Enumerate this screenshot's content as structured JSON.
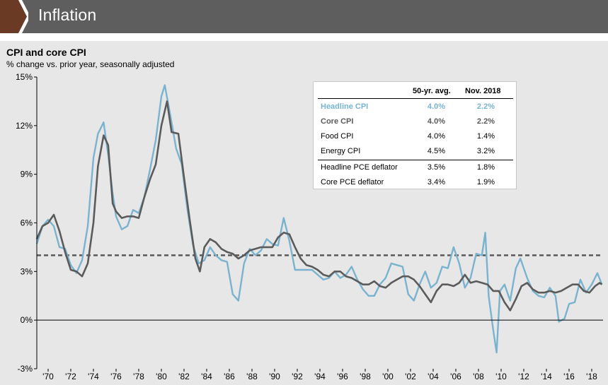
{
  "header": {
    "title": "Inflation",
    "tab_color": "#6b3a24",
    "bar_color": "#5e5e5e"
  },
  "chart_data": {
    "type": "line",
    "title": "CPI and core CPI",
    "subtitle": "% change vs. prior year, seasonally adjusted",
    "y_ticks": [
      "15%",
      "12%",
      "9%",
      "6%",
      "3%",
      "0%",
      "-3%"
    ],
    "ylim": [
      -3,
      15
    ],
    "x_ticks": [
      "'70",
      "'72",
      "'74",
      "'76",
      "'78",
      "'80",
      "'82",
      "'84",
      "'86",
      "'88",
      "'90",
      "'92",
      "'94",
      "'96",
      "'98",
      "'00",
      "'02",
      "'04",
      "'06",
      "'08",
      "'10",
      "'12",
      "'14",
      "'16",
      "'18"
    ],
    "xlim": [
      1969.0,
      2019.0
    ],
    "reference_line": {
      "value": 4.0,
      "style": "dashed",
      "color": "#5a5a5a"
    },
    "series": [
      {
        "name": "Headline CPI",
        "color": "#7ab3cf",
        "points": [
          [
            1969.0,
            4.7
          ],
          [
            1969.5,
            5.8
          ],
          [
            1970.0,
            6.2
          ],
          [
            1970.5,
            5.8
          ],
          [
            1971.0,
            4.5
          ],
          [
            1971.5,
            4.4
          ],
          [
            1972.0,
            3.4
          ],
          [
            1972.5,
            2.9
          ],
          [
            1973.0,
            3.7
          ],
          [
            1973.5,
            5.8
          ],
          [
            1974.0,
            10.0
          ],
          [
            1974.4,
            11.5
          ],
          [
            1974.9,
            12.2
          ],
          [
            1975.3,
            10.2
          ],
          [
            1975.7,
            7.8
          ],
          [
            1976.0,
            6.4
          ],
          [
            1976.5,
            5.6
          ],
          [
            1977.0,
            5.8
          ],
          [
            1977.5,
            6.8
          ],
          [
            1978.0,
            6.6
          ],
          [
            1978.5,
            7.6
          ],
          [
            1979.0,
            9.3
          ],
          [
            1979.5,
            11.1
          ],
          [
            1980.0,
            13.8
          ],
          [
            1980.3,
            14.5
          ],
          [
            1980.8,
            12.6
          ],
          [
            1981.3,
            10.6
          ],
          [
            1981.8,
            9.6
          ],
          [
            1982.3,
            6.8
          ],
          [
            1982.8,
            4.6
          ],
          [
            1983.3,
            3.5
          ],
          [
            1983.8,
            3.7
          ],
          [
            1984.3,
            4.5
          ],
          [
            1984.8,
            4.0
          ],
          [
            1985.3,
            3.7
          ],
          [
            1985.8,
            3.6
          ],
          [
            1986.3,
            1.6
          ],
          [
            1986.8,
            1.2
          ],
          [
            1987.3,
            3.5
          ],
          [
            1987.8,
            4.4
          ],
          [
            1988.3,
            4.0
          ],
          [
            1988.8,
            4.3
          ],
          [
            1989.3,
            5.0
          ],
          [
            1989.8,
            4.7
          ],
          [
            1990.3,
            4.6
          ],
          [
            1990.8,
            6.3
          ],
          [
            1991.3,
            4.9
          ],
          [
            1991.8,
            3.1
          ],
          [
            1992.3,
            3.1
          ],
          [
            1992.8,
            3.1
          ],
          [
            1993.3,
            3.1
          ],
          [
            1993.8,
            2.8
          ],
          [
            1994.3,
            2.5
          ],
          [
            1994.8,
            2.6
          ],
          [
            1995.3,
            3.0
          ],
          [
            1995.8,
            2.6
          ],
          [
            1996.3,
            2.8
          ],
          [
            1996.8,
            3.3
          ],
          [
            1997.3,
            2.5
          ],
          [
            1997.8,
            1.9
          ],
          [
            1998.3,
            1.5
          ],
          [
            1998.8,
            1.5
          ],
          [
            1999.3,
            2.2
          ],
          [
            1999.8,
            2.6
          ],
          [
            2000.3,
            3.5
          ],
          [
            2000.8,
            3.4
          ],
          [
            2001.3,
            3.3
          ],
          [
            2001.8,
            1.6
          ],
          [
            2002.3,
            1.2
          ],
          [
            2002.8,
            2.2
          ],
          [
            2003.3,
            3.0
          ],
          [
            2003.8,
            2.0
          ],
          [
            2004.3,
            2.3
          ],
          [
            2004.8,
            3.3
          ],
          [
            2005.3,
            3.2
          ],
          [
            2005.8,
            4.5
          ],
          [
            2006.3,
            3.5
          ],
          [
            2006.8,
            2.0
          ],
          [
            2007.3,
            2.6
          ],
          [
            2007.8,
            4.1
          ],
          [
            2008.3,
            4.0
          ],
          [
            2008.6,
            5.4
          ],
          [
            2008.9,
            1.5
          ],
          [
            2009.3,
            -0.6
          ],
          [
            2009.6,
            -2.0
          ],
          [
            2009.9,
            1.8
          ],
          [
            2010.3,
            2.2
          ],
          [
            2010.8,
            1.2
          ],
          [
            2011.3,
            3.2
          ],
          [
            2011.7,
            3.8
          ],
          [
            2012.3,
            2.6
          ],
          [
            2012.8,
            1.8
          ],
          [
            2013.3,
            1.5
          ],
          [
            2013.8,
            1.4
          ],
          [
            2014.3,
            2.0
          ],
          [
            2014.8,
            1.5
          ],
          [
            2015.1,
            -0.1
          ],
          [
            2015.6,
            0.1
          ],
          [
            2016.0,
            1.0
          ],
          [
            2016.5,
            1.1
          ],
          [
            2017.0,
            2.5
          ],
          [
            2017.5,
            1.7
          ],
          [
            2018.0,
            2.2
          ],
          [
            2018.5,
            2.9
          ],
          [
            2018.9,
            2.2
          ]
        ]
      },
      {
        "name": "Core CPI",
        "color": "#5b5b5b",
        "points": [
          [
            1969.0,
            5.0
          ],
          [
            1969.5,
            5.8
          ],
          [
            1970.0,
            6.0
          ],
          [
            1970.5,
            6.5
          ],
          [
            1971.0,
            5.5
          ],
          [
            1971.5,
            4.2
          ],
          [
            1972.0,
            3.1
          ],
          [
            1972.5,
            3.0
          ],
          [
            1973.0,
            2.7
          ],
          [
            1973.5,
            3.5
          ],
          [
            1974.0,
            6.0
          ],
          [
            1974.4,
            9.5
          ],
          [
            1974.9,
            11.4
          ],
          [
            1975.3,
            10.8
          ],
          [
            1975.7,
            7.2
          ],
          [
            1976.0,
            6.7
          ],
          [
            1976.5,
            6.3
          ],
          [
            1977.0,
            6.4
          ],
          [
            1977.5,
            6.4
          ],
          [
            1978.0,
            6.3
          ],
          [
            1978.5,
            7.6
          ],
          [
            1979.0,
            8.7
          ],
          [
            1979.5,
            9.6
          ],
          [
            1980.0,
            12.0
          ],
          [
            1980.5,
            13.5
          ],
          [
            1980.9,
            11.6
          ],
          [
            1981.5,
            11.5
          ],
          [
            1982.0,
            8.8
          ],
          [
            1982.5,
            6.2
          ],
          [
            1983.0,
            3.8
          ],
          [
            1983.4,
            3.0
          ],
          [
            1983.8,
            4.5
          ],
          [
            1984.3,
            5.0
          ],
          [
            1984.8,
            4.8
          ],
          [
            1985.3,
            4.4
          ],
          [
            1985.8,
            4.2
          ],
          [
            1986.3,
            4.1
          ],
          [
            1986.8,
            3.8
          ],
          [
            1987.3,
            4.0
          ],
          [
            1987.8,
            4.3
          ],
          [
            1988.3,
            4.4
          ],
          [
            1988.8,
            4.5
          ],
          [
            1989.3,
            4.5
          ],
          [
            1989.8,
            4.5
          ],
          [
            1990.3,
            5.1
          ],
          [
            1990.8,
            5.4
          ],
          [
            1991.3,
            5.3
          ],
          [
            1991.8,
            4.5
          ],
          [
            1992.3,
            3.8
          ],
          [
            1992.8,
            3.4
          ],
          [
            1993.3,
            3.3
          ],
          [
            1993.8,
            3.1
          ],
          [
            1994.3,
            2.8
          ],
          [
            1994.8,
            2.7
          ],
          [
            1995.3,
            3.0
          ],
          [
            1995.8,
            3.0
          ],
          [
            1996.3,
            2.7
          ],
          [
            1996.8,
            2.6
          ],
          [
            1997.3,
            2.4
          ],
          [
            1997.8,
            2.2
          ],
          [
            1998.3,
            2.2
          ],
          [
            1998.8,
            2.4
          ],
          [
            1999.3,
            2.1
          ],
          [
            1999.8,
            2.0
          ],
          [
            2000.3,
            2.3
          ],
          [
            2000.8,
            2.5
          ],
          [
            2001.3,
            2.7
          ],
          [
            2001.8,
            2.7
          ],
          [
            2002.3,
            2.5
          ],
          [
            2002.8,
            2.1
          ],
          [
            2003.3,
            1.6
          ],
          [
            2003.8,
            1.1
          ],
          [
            2004.3,
            1.8
          ],
          [
            2004.8,
            2.2
          ],
          [
            2005.3,
            2.2
          ],
          [
            2005.8,
            2.1
          ],
          [
            2006.3,
            2.3
          ],
          [
            2006.8,
            2.8
          ],
          [
            2007.3,
            2.3
          ],
          [
            2007.8,
            2.4
          ],
          [
            2008.3,
            2.3
          ],
          [
            2008.8,
            2.2
          ],
          [
            2009.3,
            1.8
          ],
          [
            2009.8,
            1.8
          ],
          [
            2010.3,
            1.1
          ],
          [
            2010.8,
            0.6
          ],
          [
            2011.3,
            1.3
          ],
          [
            2011.8,
            2.1
          ],
          [
            2012.3,
            2.3
          ],
          [
            2012.8,
            1.9
          ],
          [
            2013.3,
            1.7
          ],
          [
            2013.8,
            1.7
          ],
          [
            2014.3,
            1.8
          ],
          [
            2014.8,
            1.7
          ],
          [
            2015.3,
            1.8
          ],
          [
            2015.8,
            2.0
          ],
          [
            2016.3,
            2.2
          ],
          [
            2016.8,
            2.2
          ],
          [
            2017.3,
            1.8
          ],
          [
            2017.8,
            1.7
          ],
          [
            2018.3,
            2.1
          ],
          [
            2018.7,
            2.3
          ],
          [
            2018.9,
            2.2
          ]
        ]
      }
    ]
  },
  "table": {
    "headers": [
      "50-yr. avg.",
      "Nov. 2018"
    ],
    "rows": [
      {
        "label": "Headline CPI",
        "avg": "4.0%",
        "nov": "2.2%",
        "color": "#7ab3cf",
        "bold": true
      },
      {
        "label": "Core CPI",
        "avg": "4.0%",
        "nov": "2.2%",
        "color": "#5b5b5b",
        "bold": true
      },
      {
        "label": "Food CPI",
        "avg": "4.0%",
        "nov": "1.4%",
        "color": "#000000",
        "bold": false
      },
      {
        "label": "Energy CPI",
        "avg": "4.5%",
        "nov": "3.2%",
        "color": "#000000",
        "bold": false
      },
      {
        "label": "Headline PCE deflator",
        "avg": "3.5%",
        "nov": "1.8%",
        "color": "#000000",
        "bold": false
      },
      {
        "label": "Core PCE deflator",
        "avg": "3.4%",
        "nov": "1.9%",
        "color": "#000000",
        "bold": false
      }
    ]
  }
}
